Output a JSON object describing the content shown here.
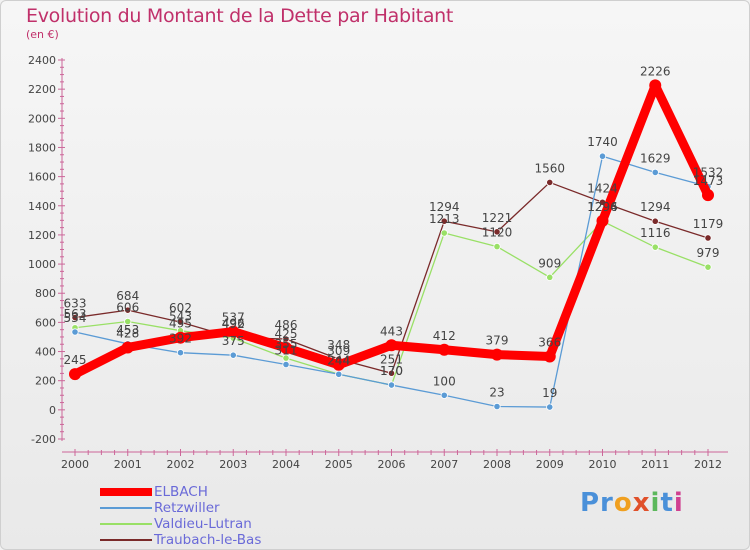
{
  "chart_data": {
    "type": "line",
    "title": "Evolution du Montant de la Dette par Habitant",
    "subtitle": "(en €)",
    "x": [
      "2000",
      "2001",
      "2002",
      "2003",
      "2004",
      "2005",
      "2006",
      "2007",
      "2008",
      "2009",
      "2010",
      "2011",
      "2012"
    ],
    "ylim": [
      -200,
      2400
    ],
    "yticks": [
      -200,
      0,
      200,
      400,
      600,
      800,
      1000,
      1200,
      1400,
      1600,
      1800,
      2000,
      2200,
      2400
    ],
    "grid": false,
    "legend_position": "bottom-left",
    "series": [
      {
        "name": "ELBACH",
        "color": "#ff0000",
        "values": [
          245,
          428,
          495,
          537,
          425,
          309,
          443,
          412,
          379,
          366,
          1296,
          2226,
          1473
        ]
      },
      {
        "name": "Retzwiller",
        "color": "#5b9bd5",
        "values": [
          534,
          453,
          392,
          375,
          311,
          244,
          170,
          100,
          23,
          19,
          1740,
          1629,
          1532
        ]
      },
      {
        "name": "Valdieu-Lutran",
        "color": "#99e066",
        "values": [
          563,
          606,
          543,
          492,
          355,
          244,
          170,
          1213,
          1120,
          909,
          1294,
          1116,
          979
        ]
      },
      {
        "name": "Traubach-le-Bas",
        "color": "#7a2a2a",
        "values": [
          633,
          684,
          602,
          496,
          486,
          348,
          251,
          1294,
          1221,
          1560,
          1424,
          1294,
          1179
        ]
      }
    ]
  },
  "logo": {
    "text_parts": [
      "Pr",
      "o",
      "x",
      "i",
      "t",
      "i"
    ]
  }
}
